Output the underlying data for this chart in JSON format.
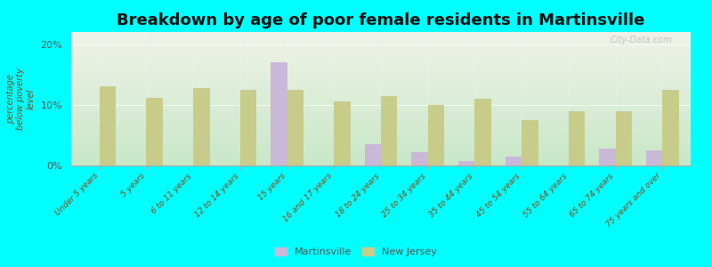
{
  "title": "Breakdown by age of poor female residents in Martinsville",
  "ylabel": "percentage\nbelow poverty\nlevel",
  "categories": [
    "Under 5 years",
    "5 years",
    "6 to 11 years",
    "12 to 14 years",
    "15 years",
    "16 and 17 years",
    "18 to 24 years",
    "25 to 34 years",
    "35 to 44 years",
    "45 to 54 years",
    "55 to 64 years",
    "65 to 74 years",
    "75 years and over"
  ],
  "martinsville": [
    0,
    0,
    0,
    0,
    17.0,
    0,
    3.5,
    2.2,
    0.7,
    1.5,
    0,
    2.8,
    2.5
  ],
  "new_jersey": [
    13.0,
    11.2,
    12.8,
    12.5,
    12.5,
    10.5,
    11.5,
    10.0,
    11.0,
    7.5,
    9.0,
    9.0,
    12.5
  ],
  "martinsville_color": "#c9b8d8",
  "new_jersey_color": "#c8cc8a",
  "background_color": "#00ffff",
  "plot_bg_top": "#f0f2e8",
  "plot_bg_bottom": "#c8e8c8",
  "ylim": [
    0,
    22
  ],
  "yticks": [
    0,
    10,
    20
  ],
  "ytick_labels": [
    "0%",
    "10%",
    "20%"
  ],
  "title_fontsize": 13,
  "legend_martinsville": "Martinsville",
  "legend_new_jersey": "New Jersey",
  "watermark": "City-Data.com"
}
